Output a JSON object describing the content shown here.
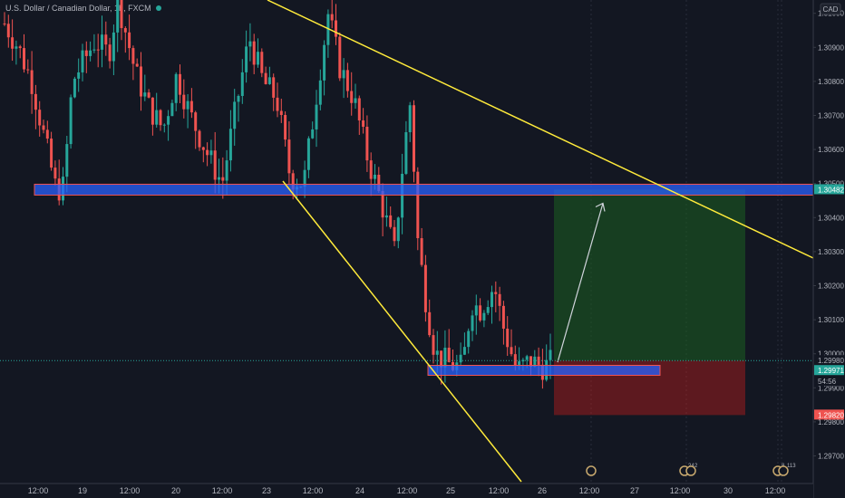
{
  "header": {
    "symbol_title": "U.S. Dollar / Canadian Dollar, 1h, FXCM",
    "currency": "CAD",
    "status_dot_color": "#26a69a"
  },
  "price_axis": {
    "ticks": [
      "1.31000",
      "1.30900",
      "1.30800",
      "1.30700",
      "1.30600",
      "1.30500",
      "1.30400",
      "1.30300",
      "1.30200",
      "1.30100",
      "1.30000",
      "1.29900",
      "1.29800",
      "1.29700"
    ],
    "range": [
      1.2966,
      1.3102
    ]
  },
  "price_labels": [
    {
      "id": "resistance",
      "text": "1.30482",
      "color": "#26a69a"
    },
    {
      "id": "entry",
      "text": "1.29980",
      "color": "#b2b5be"
    },
    {
      "id": "current",
      "text": "1.29971",
      "color": "#26a69a"
    },
    {
      "id": "countdown",
      "text": "54:56",
      "color": "#787b86"
    },
    {
      "id": "stop",
      "text": "1.29820",
      "color": "#ef5350"
    }
  ],
  "time_axis": [
    "12:00",
    "19",
    "12:00",
    "20",
    "12:00",
    "23",
    "12:00",
    "24",
    "12:00",
    "25",
    "12:00",
    "26",
    "12:00",
    "27",
    "12:00",
    "30",
    "12:00"
  ],
  "events": [
    {
      "label": ""
    },
    {
      "label": "24"
    },
    {
      "label": "2"
    },
    {
      "label": "8"
    },
    {
      "label": "113"
    }
  ],
  "colors": {
    "up": "#26a69a",
    "down": "#ef5350",
    "zone": "#2962ff",
    "trendline": "#ffeb3b",
    "target": "#1b5e20",
    "stop": "#b71c1c"
  }
}
